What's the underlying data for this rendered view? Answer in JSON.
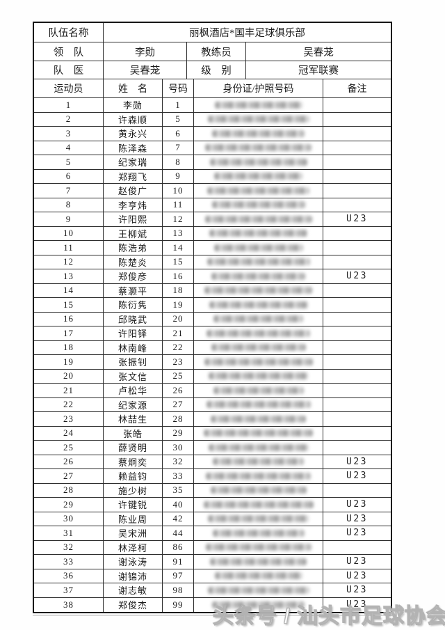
{
  "doc": {
    "type": "team-roster-sheet",
    "colors": {
      "paper": "#ffffff",
      "line": "#2d2d2d",
      "outer_border": "#161616",
      "text": "#1c1c1c",
      "blur_streak": "#a0a0a0",
      "watermark_fill": "#ffffff",
      "watermark_outline": "#b3b3b3"
    }
  },
  "header": {
    "team_label": "队伍名称",
    "team_name": "丽枫酒店*国丰足球俱乐部",
    "leader_label": "领　队",
    "leader_name": "李勋",
    "coach_label": "教练员",
    "coach_name": "吴春茏",
    "doctor_label": "队　医",
    "doctor_name": "吴春茏",
    "level_label": "级　别",
    "level_name": "冠军联赛"
  },
  "columns": {
    "athlete": "运动员",
    "name": "姓　名",
    "number": "号码",
    "id": "身份证/护照号码",
    "remark": "备注"
  },
  "players": [
    {
      "seq": "1",
      "name": "李勋",
      "num": "1",
      "remark": ""
    },
    {
      "seq": "2",
      "name": "许森顺",
      "num": "5",
      "remark": ""
    },
    {
      "seq": "3",
      "name": "黄永兴",
      "num": "6",
      "remark": ""
    },
    {
      "seq": "4",
      "name": "陈泽森",
      "num": "7",
      "remark": ""
    },
    {
      "seq": "5",
      "name": "纪家瑞",
      "num": "8",
      "remark": ""
    },
    {
      "seq": "6",
      "name": "郑翔飞",
      "num": "9",
      "remark": ""
    },
    {
      "seq": "7",
      "name": "赵俊广",
      "num": "10",
      "remark": ""
    },
    {
      "seq": "8",
      "name": "李亨炜",
      "num": "11",
      "remark": ""
    },
    {
      "seq": "9",
      "name": "许阳熙",
      "num": "12",
      "remark": "U23"
    },
    {
      "seq": "10",
      "name": "王柳斌",
      "num": "13",
      "remark": ""
    },
    {
      "seq": "11",
      "name": "陈浩弟",
      "num": "14",
      "remark": ""
    },
    {
      "seq": "12",
      "name": "陈楚炎",
      "num": "15",
      "remark": ""
    },
    {
      "seq": "13",
      "name": "郑俊彦",
      "num": "16",
      "remark": "U23"
    },
    {
      "seq": "14",
      "name": "蔡灏平",
      "num": "18",
      "remark": ""
    },
    {
      "seq": "15",
      "name": "陈衍隽",
      "num": "19",
      "remark": ""
    },
    {
      "seq": "16",
      "name": "邱晓武",
      "num": "20",
      "remark": ""
    },
    {
      "seq": "17",
      "name": "许阳铎",
      "num": "21",
      "remark": ""
    },
    {
      "seq": "18",
      "name": "林南峰",
      "num": "22",
      "remark": ""
    },
    {
      "seq": "19",
      "name": "张振钊",
      "num": "23",
      "remark": ""
    },
    {
      "seq": "20",
      "name": "张文信",
      "num": "25",
      "remark": ""
    },
    {
      "seq": "21",
      "name": "卢松华",
      "num": "26",
      "remark": ""
    },
    {
      "seq": "22",
      "name": "纪家源",
      "num": "27",
      "remark": ""
    },
    {
      "seq": "23",
      "name": "林喆生",
      "num": "28",
      "remark": ""
    },
    {
      "seq": "24",
      "name": "张皓",
      "num": "29",
      "remark": ""
    },
    {
      "seq": "25",
      "name": "薛贤明",
      "num": "30",
      "remark": ""
    },
    {
      "seq": "26",
      "name": "蔡炯奕",
      "num": "32",
      "remark": "U23"
    },
    {
      "seq": "27",
      "name": "赖益钧",
      "num": "33",
      "remark": "U23"
    },
    {
      "seq": "28",
      "name": "施少树",
      "num": "35",
      "remark": ""
    },
    {
      "seq": "29",
      "name": "许键锐",
      "num": "40",
      "remark": "U23"
    },
    {
      "seq": "30",
      "name": "陈业周",
      "num": "42",
      "remark": "U23"
    },
    {
      "seq": "31",
      "name": "吴宋洲",
      "num": "44",
      "remark": "U23"
    },
    {
      "seq": "32",
      "name": "林泽柯",
      "num": "86",
      "remark": ""
    },
    {
      "seq": "33",
      "name": "谢泳涛",
      "num": "91",
      "remark": "U23"
    },
    {
      "seq": "36",
      "name": "谢锦沛",
      "num": "97",
      "remark": "U23"
    },
    {
      "seq": "37",
      "name": "谢志敏",
      "num": "98",
      "remark": "U23"
    },
    {
      "seq": "38",
      "name": "郑俊杰",
      "num": "99",
      "remark": "U23"
    }
  ],
  "watermark": {
    "text": "头条号 / 汕头市足球协会"
  }
}
